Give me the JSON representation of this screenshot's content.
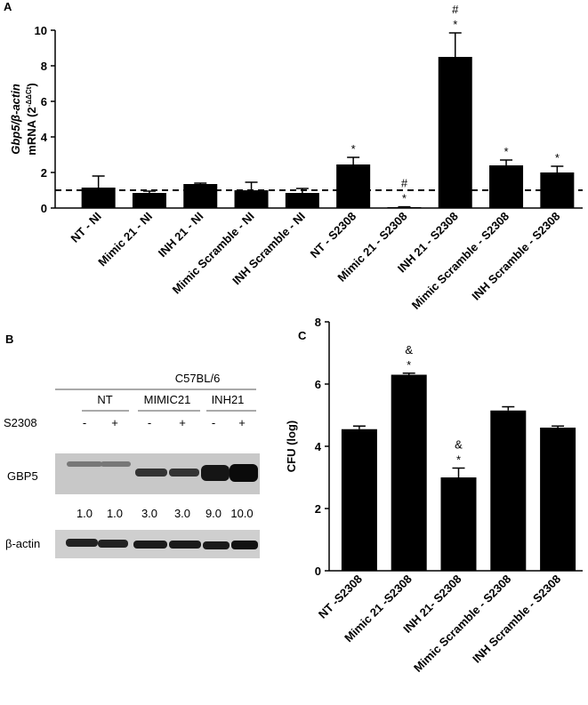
{
  "chart_data": [
    {
      "type": "bar",
      "panel_label": "A",
      "y_label": "Gbp5/β-actin",
      "y_sublabel": {
        "base": "mRNA (2",
        "sup": "-ΔΔCt",
        "end": ")"
      },
      "categories": [
        "NT - NI",
        "Mimic 21 - NI",
        "INH 21 - NI",
        "Mimic Scramble - NI",
        "INH Scramble - NI",
        "NT - S2308",
        "Mimic 21 - S2308",
        "INH 21 - S2308",
        "Mimic Scramble - S2308",
        "INH Scramble - S2308"
      ],
      "values": [
        1.15,
        0.85,
        1.35,
        1.0,
        0.85,
        2.45,
        0.05,
        8.5,
        2.4,
        2.0
      ],
      "errors": [
        0.65,
        0.1,
        0.05,
        0.45,
        0.25,
        0.4,
        0.02,
        1.35,
        0.3,
        0.35
      ],
      "annotations": [
        null,
        null,
        null,
        null,
        null,
        [
          "*"
        ],
        [
          "*",
          "#"
        ],
        [
          "*",
          "#"
        ],
        [
          "*"
        ],
        [
          "*"
        ]
      ],
      "reference_line": 1,
      "color": "#000000",
      "ylim": [
        0,
        10
      ],
      "yticks": [
        0,
        2,
        4,
        6,
        8,
        10
      ]
    },
    {
      "type": "bar",
      "panel_label": "C",
      "y_label": "CFU (log)",
      "categories": [
        "NT -S2308",
        "Mimic 21 -S2308",
        "INH 21- S2308",
        "Mimic Scramble - S2308",
        "INH Scramble - S2308"
      ],
      "values": [
        4.55,
        6.3,
        3.0,
        5.15,
        4.6
      ],
      "errors": [
        0.1,
        0.05,
        0.3,
        0.12,
        0.05
      ],
      "annotations": [
        null,
        [
          "*",
          "&"
        ],
        [
          "*",
          "&"
        ],
        null,
        null
      ],
      "color": "#000000",
      "ylim": [
        0,
        8
      ],
      "yticks": [
        0,
        2,
        4,
        6,
        8
      ]
    }
  ],
  "blot": {
    "panel_label": "B",
    "strain": "C57BL/6",
    "groups": [
      "NT",
      "MIMIC21",
      "INH21"
    ],
    "treatment_label": "S2308",
    "treatment_signs": [
      "-",
      "+",
      "-",
      "+",
      "-",
      "+"
    ],
    "protein": "GBP5",
    "quantification": [
      "1.0",
      "1.0",
      "3.0",
      "3.0",
      "9.0",
      "10.0"
    ],
    "loading_control": "β-actin"
  }
}
